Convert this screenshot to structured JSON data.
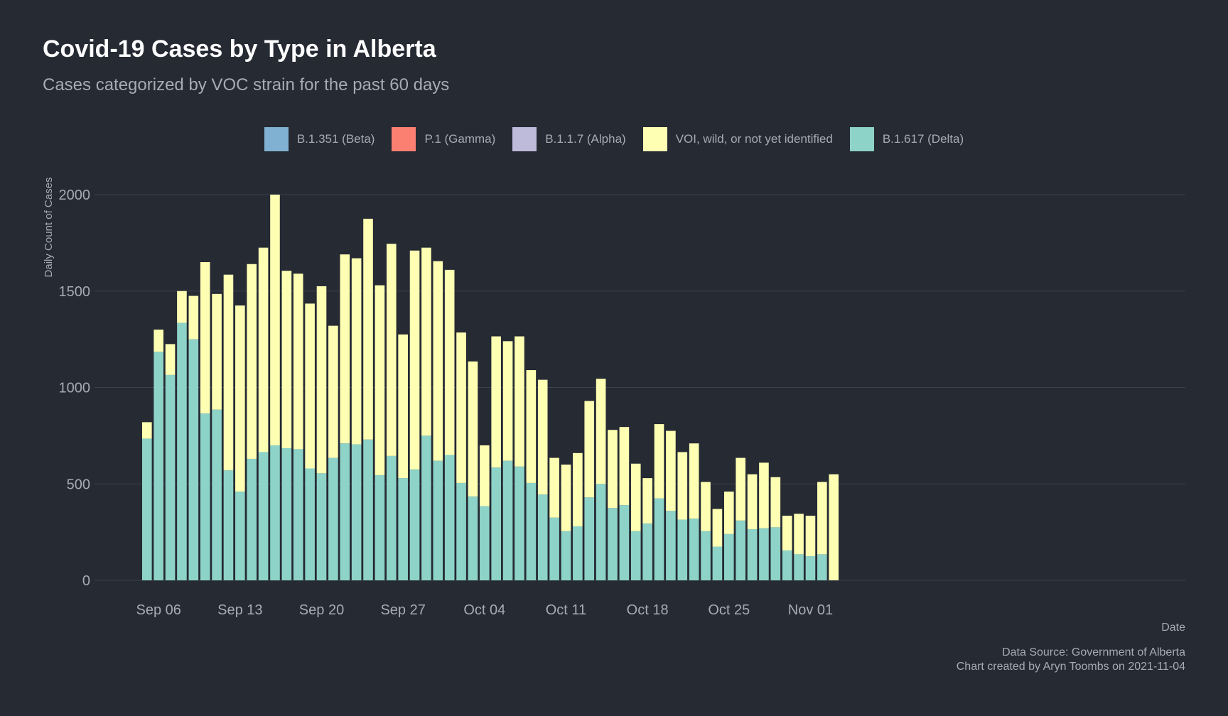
{
  "chart_data": {
    "type": "bar",
    "stacked": true,
    "title": "Covid-19 Cases by Type in Alberta",
    "subtitle": "Cases categorized by VOC strain for the past 60 days",
    "xlabel": "Date",
    "ylabel": "Daily Count of Cases",
    "ylim": [
      0,
      2000
    ],
    "yticks": [
      0,
      500,
      1000,
      1500,
      2000
    ],
    "xticks": [
      {
        "label": "Sep 06",
        "index": 1
      },
      {
        "label": "Sep 13",
        "index": 8
      },
      {
        "label": "Sep 20",
        "index": 15
      },
      {
        "label": "Sep 27",
        "index": 22
      },
      {
        "label": "Oct 04",
        "index": 29
      },
      {
        "label": "Oct 11",
        "index": 36
      },
      {
        "label": "Oct 18",
        "index": 43
      },
      {
        "label": "Oct 25",
        "index": 50
      },
      {
        "label": "Nov 01",
        "index": 57
      }
    ],
    "grid": true,
    "legend_position": "top",
    "legend": [
      {
        "name": "B.1.351 (Beta)",
        "color": "#80b1d3"
      },
      {
        "name": "P.1 (Gamma)",
        "color": "#fb8072"
      },
      {
        "name": "B.1.1.7 (Alpha)",
        "color": "#bebada"
      },
      {
        "name": "VOI, wild, or not yet identified",
        "color": "#ffffb3"
      },
      {
        "name": "B.1.617 (Delta)",
        "color": "#8dd3c7"
      }
    ],
    "categories": [
      "Sep 05",
      "Sep 06",
      "Sep 07",
      "Sep 08",
      "Sep 09",
      "Sep 10",
      "Sep 11",
      "Sep 12",
      "Sep 13",
      "Sep 14",
      "Sep 15",
      "Sep 16",
      "Sep 17",
      "Sep 18",
      "Sep 19",
      "Sep 20",
      "Sep 21",
      "Sep 22",
      "Sep 23",
      "Sep 24",
      "Sep 25",
      "Sep 26",
      "Sep 27",
      "Sep 28",
      "Sep 29",
      "Sep 30",
      "Oct 01",
      "Oct 02",
      "Oct 03",
      "Oct 04",
      "Oct 05",
      "Oct 06",
      "Oct 07",
      "Oct 08",
      "Oct 09",
      "Oct 10",
      "Oct 11",
      "Oct 12",
      "Oct 13",
      "Oct 14",
      "Oct 15",
      "Oct 16",
      "Oct 17",
      "Oct 18",
      "Oct 19",
      "Oct 20",
      "Oct 21",
      "Oct 22",
      "Oct 23",
      "Oct 24",
      "Oct 25",
      "Oct 26",
      "Oct 27",
      "Oct 28",
      "Oct 29",
      "Oct 30",
      "Oct 31",
      "Nov 01",
      "Nov 02",
      "Nov 03"
    ],
    "series": [
      {
        "name": "B.1.617 (Delta)",
        "color": "#8dd3c7",
        "values": [
          735,
          1185,
          1065,
          1335,
          1250,
          865,
          885,
          570,
          460,
          630,
          665,
          700,
          685,
          680,
          580,
          555,
          635,
          710,
          705,
          730,
          545,
          645,
          530,
          575,
          750,
          620,
          650,
          505,
          435,
          385,
          585,
          620,
          590,
          505,
          445,
          325,
          255,
          280,
          430,
          500,
          375,
          390,
          255,
          295,
          425,
          360,
          315,
          320,
          255,
          175,
          240,
          310,
          265,
          270,
          275,
          155,
          135,
          125,
          135,
          0
        ]
      },
      {
        "name": "VOI, wild, or not yet identified",
        "color": "#ffffb3",
        "values": [
          85,
          115,
          160,
          165,
          225,
          785,
          600,
          1015,
          965,
          1010,
          1060,
          1300,
          920,
          910,
          855,
          970,
          685,
          980,
          965,
          1145,
          985,
          1100,
          745,
          1135,
          975,
          1035,
          960,
          780,
          700,
          315,
          680,
          620,
          675,
          585,
          595,
          310,
          345,
          380,
          500,
          545,
          405,
          405,
          350,
          235,
          385,
          415,
          350,
          390,
          255,
          195,
          220,
          325,
          285,
          340,
          260,
          180,
          210,
          210,
          375,
          550
        ]
      }
    ]
  },
  "caption": {
    "line1": "Data Source: Government of Alberta",
    "line2": "Chart created by Aryn Toombs on 2021-11-04"
  }
}
